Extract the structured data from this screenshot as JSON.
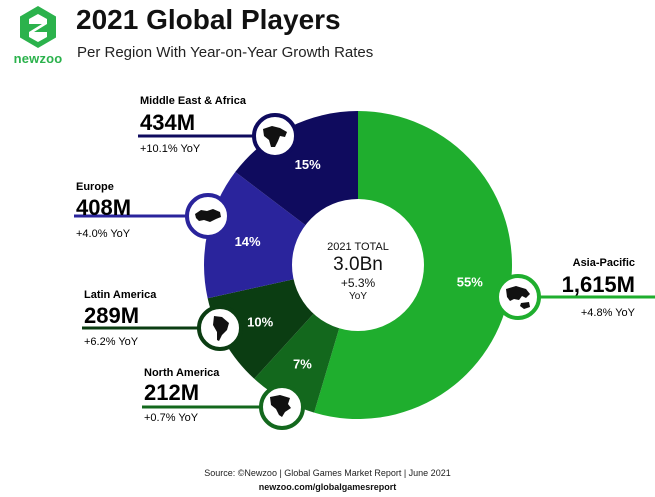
{
  "brand": {
    "name": "newzoo"
  },
  "header": {
    "title": "2021 Global Players",
    "subtitle": "Per Region With Year-on-Year Growth Rates"
  },
  "chart_data": {
    "type": "pie",
    "title": "2021 Global Players",
    "subtitle": "Per Region With Year-on-Year Growth Rates",
    "center": {
      "label": "2021 TOTAL",
      "value": "3.0Bn",
      "growth": "+5.3%",
      "growth_unit": "YoY"
    },
    "slices": [
      {
        "name": "Asia-Pacific",
        "value": 1615,
        "value_label": "1,615M",
        "share": 55,
        "share_label": "55%",
        "growth_label": "+4.8% YoY",
        "color": "#1fae2e",
        "icon": "asia-pacific-map-icon"
      },
      {
        "name": "North America",
        "value": 212,
        "value_label": "212M",
        "share": 7,
        "share_label": "7%",
        "growth_label": "+0.7% YoY",
        "color": "#13681d",
        "icon": "north-america-map-icon"
      },
      {
        "name": "Latin America",
        "value": 289,
        "value_label": "289M",
        "share": 10,
        "share_label": "10%",
        "growth_label": "+6.2% YoY",
        "color": "#0b3d12",
        "icon": "latin-america-map-icon"
      },
      {
        "name": "Europe",
        "value": 408,
        "value_label": "408M",
        "share": 14,
        "share_label": "14%",
        "growth_label": "+4.0% YoY",
        "color": "#2a249c",
        "icon": "europe-map-icon"
      },
      {
        "name": "Middle East & Africa",
        "value": 434,
        "value_label": "434M",
        "share": 15,
        "share_label": "15%",
        "growth_label": "+10.1% YoY",
        "color": "#0f0b5e",
        "icon": "middle-east-africa-map-icon"
      }
    ]
  },
  "footer": {
    "source": "Source: ©Newzoo | Global Games Market Report | June 2021",
    "url": "newzoo.com/globalgamesreport"
  }
}
